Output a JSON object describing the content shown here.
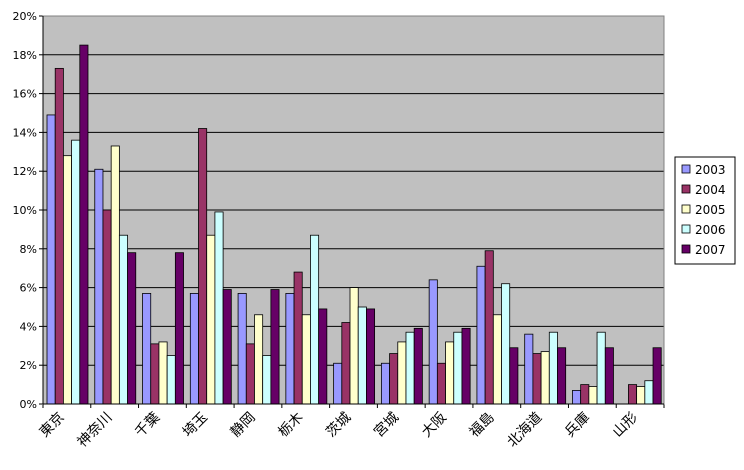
{
  "chart_data": {
    "type": "bar",
    "categories": [
      "東京",
      "神奈川",
      "千葉",
      "埼玉",
      "静岡",
      "栃木",
      "茨城",
      "宮城",
      "大阪",
      "福島",
      "北海道",
      "兵庫",
      "山形"
    ],
    "series": [
      {
        "name": "2003",
        "color": "#9999ff",
        "values": [
          14.9,
          12.1,
          5.7,
          5.7,
          5.7,
          5.7,
          2.1,
          2.1,
          6.4,
          7.1,
          3.6,
          0.7,
          0.0
        ]
      },
      {
        "name": "2004",
        "color": "#993366",
        "values": [
          17.3,
          10.0,
          3.1,
          14.2,
          3.1,
          6.8,
          4.2,
          2.6,
          2.1,
          7.9,
          2.6,
          1.0,
          1.0
        ]
      },
      {
        "name": "2005",
        "color": "#ffffcc",
        "values": [
          12.8,
          13.3,
          3.2,
          8.7,
          4.6,
          4.6,
          6.0,
          3.2,
          3.2,
          4.6,
          2.7,
          0.9,
          0.9
        ]
      },
      {
        "name": "2006",
        "color": "#ccffff",
        "values": [
          13.6,
          8.7,
          2.5,
          9.9,
          2.5,
          8.7,
          5.0,
          3.7,
          3.7,
          6.2,
          3.7,
          3.7,
          1.2
        ]
      },
      {
        "name": "2007",
        "color": "#660066",
        "values": [
          18.5,
          7.8,
          7.8,
          5.9,
          5.9,
          4.9,
          4.9,
          3.9,
          3.9,
          2.9,
          2.9,
          2.9,
          2.9
        ]
      }
    ],
    "y_ticks": [
      "0%",
      "2%",
      "4%",
      "6%",
      "8%",
      "10%",
      "12%",
      "14%",
      "16%",
      "18%",
      "20%"
    ],
    "ylim": [
      0,
      20
    ],
    "grid": true,
    "legend_position": "right",
    "plot_background": "#c0c0c0",
    "gridline_color": "#000000"
  }
}
